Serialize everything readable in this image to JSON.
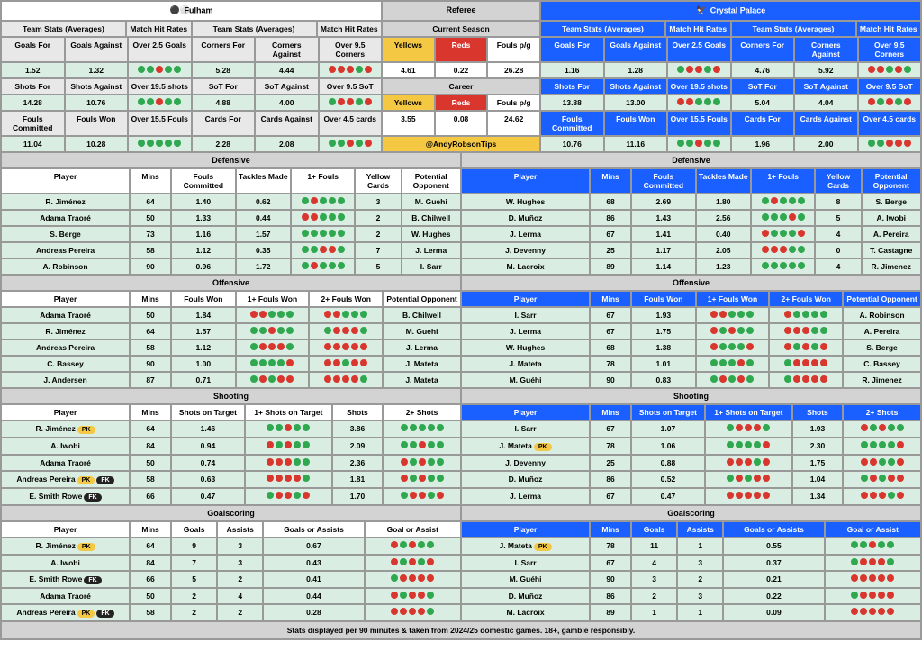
{
  "colors": {
    "home_primary": "#ffffff",
    "away_primary": "#1a5fff",
    "data_bg": "#d9ede2",
    "grey": "#d3d3d3",
    "yellow": "#f4c842",
    "red": "#d9362e",
    "green_dot": "#2fa84f"
  },
  "home_name": "Fulham",
  "away_name": "Crystal Palace",
  "referee_label": "Referee",
  "current_season_label": "Current Season",
  "career_label": "Career",
  "twitter": "@AndyRobsonTips",
  "footer": "Stats displayed per 90 minutes & taken from 2024/25 domestic games. 18+, gamble responsibly.",
  "stat_headers": [
    "Team Stats (Averages)",
    "Match Hit Rates",
    "Team Stats (Averages)",
    "Match Hit Rates"
  ],
  "ref_headers": [
    "Yellows",
    "Reds",
    "Fouls p/g"
  ],
  "home_stats": {
    "r1_labels": [
      "Goals For",
      "Goals Against",
      "Over 2.5 Goals",
      "Corners For",
      "Corners Against",
      "Over 9.5 Corners"
    ],
    "r1_vals": [
      "1.52",
      "1.32",
      "ggrgg",
      "5.28",
      "4.44",
      "rrrgr"
    ],
    "r2_labels": [
      "Shots For",
      "Shots Against",
      "Over 19.5 shots",
      "SoT For",
      "SoT Against",
      "Over 9.5 SoT"
    ],
    "r2_vals": [
      "14.28",
      "10.76",
      "ggrgg",
      "4.88",
      "4.00",
      "grrgr"
    ],
    "r3_labels": [
      "Fouls Committed",
      "Fouls Won",
      "Over 15.5 Fouls",
      "Cards For",
      "Cards Against",
      "Over 4.5 cards"
    ],
    "r3_vals": [
      "11.04",
      "10.28",
      "ggggg",
      "2.28",
      "2.08",
      "ggrgr"
    ]
  },
  "away_stats": {
    "r1_labels": [
      "Goals For",
      "Goals Against",
      "Over 2.5 Goals",
      "Corners For",
      "Corners Against",
      "Over 9.5 Corners"
    ],
    "r1_vals": [
      "1.16",
      "1.28",
      "grrgr",
      "4.76",
      "5.92",
      "rrgrg"
    ],
    "r2_labels": [
      "Shots For",
      "Shots Against",
      "Over 19.5 shots",
      "SoT For",
      "SoT Against",
      "Over 9.5 SoT"
    ],
    "r2_vals": [
      "13.88",
      "13.00",
      "rrggg",
      "5.04",
      "4.04",
      "rgrgr"
    ],
    "r3_labels": [
      "Fouls Committed",
      "Fouls Won",
      "Over 15.5 Fouls",
      "Cards For",
      "Cards Against",
      "Over 4.5 cards"
    ],
    "r3_vals": [
      "10.76",
      "11.16",
      "ggrgg",
      "1.96",
      "2.00",
      "ggrrr"
    ]
  },
  "ref_current": [
    "4.61",
    "0.22",
    "26.28"
  ],
  "ref_career": [
    "3.55",
    "0.08",
    "24.62"
  ],
  "sections": {
    "defensive": {
      "title": "Defensive",
      "cols": [
        "Player",
        "Mins",
        "Fouls Committed",
        "Tackles Made",
        "1+ Fouls",
        "Yellow Cards",
        "Potential Opponent"
      ],
      "widths": [
        "28%",
        "9%",
        "14%",
        "12%",
        "14%",
        "10%",
        "13%"
      ],
      "home": [
        [
          "R. Jiménez",
          "64",
          "1.40",
          "0.62",
          "grggg",
          "3",
          "M. Guehi"
        ],
        [
          "Adama Traoré",
          "50",
          "1.33",
          "0.44",
          "rrggg",
          "2",
          "B. Chilwell"
        ],
        [
          "S. Berge",
          "73",
          "1.16",
          "1.57",
          "ggggg",
          "2",
          "W. Hughes"
        ],
        [
          "Andreas Pereira",
          "58",
          "1.12",
          "0.35",
          "ggrrg",
          "7",
          "J. Lerma"
        ],
        [
          "A. Robinson",
          "90",
          "0.96",
          "1.72",
          "grggg",
          "5",
          "I. Sarr"
        ]
      ],
      "away": [
        [
          "W. Hughes",
          "68",
          "2.69",
          "1.80",
          "grggg",
          "8",
          "S. Berge"
        ],
        [
          "D. Muñoz",
          "86",
          "1.43",
          "2.56",
          "gggrg",
          "5",
          "A. Iwobi"
        ],
        [
          "J. Lerma",
          "67",
          "1.41",
          "0.40",
          "rgggr",
          "4",
          "A. Pereira"
        ],
        [
          "J. Devenny",
          "25",
          "1.17",
          "2.05",
          "rrrgg",
          "0",
          "T. Castagne"
        ],
        [
          "M. Lacroix",
          "89",
          "1.14",
          "1.23",
          "ggggg",
          "4",
          "R. Jimenez"
        ]
      ]
    },
    "offensive": {
      "title": "Offensive",
      "cols": [
        "Player",
        "Mins",
        "Fouls Won",
        "1+ Fouls Won",
        "2+ Fouls Won",
        "Potential Opponent"
      ],
      "widths": [
        "28%",
        "9%",
        "14%",
        "16%",
        "16%",
        "17%"
      ],
      "home": [
        [
          "Adama Traoré",
          "50",
          "1.84",
          "rrggg",
          "rrggg",
          "B. Chilwell"
        ],
        [
          "R. Jiménez",
          "64",
          "1.57",
          "ggrgg",
          "grrrg",
          "M. Guehi"
        ],
        [
          "Andreas Pereira",
          "58",
          "1.12",
          "grrrg",
          "rrrrr",
          "J. Lerma"
        ],
        [
          "C. Bassey",
          "90",
          "1.00",
          "ggggr",
          "rrgrr",
          "J. Mateta"
        ],
        [
          "J. Andersen",
          "87",
          "0.71",
          "grgrr",
          "rrrrg",
          "J. Mateta"
        ]
      ],
      "away": [
        [
          "I. Sarr",
          "67",
          "1.93",
          "rrggg",
          "rgggg",
          "A. Robinson"
        ],
        [
          "J. Lerma",
          "67",
          "1.75",
          "rgrgg",
          "rrrgg",
          "A. Pereira"
        ],
        [
          "W. Hughes",
          "68",
          "1.38",
          "rgggr",
          "rgrgr",
          "S. Berge"
        ],
        [
          "J. Mateta",
          "78",
          "1.01",
          "gggrg",
          "grrrr",
          "C. Bassey"
        ],
        [
          "M. Guéhi",
          "90",
          "0.83",
          "grgrg",
          "grrrr",
          "R. Jimenez"
        ]
      ]
    },
    "shooting": {
      "title": "Shooting",
      "cols": [
        "Player",
        "Mins",
        "Shots on Target",
        "1+ Shots on Target",
        "Shots",
        "2+ Shots"
      ],
      "widths": [
        "28%",
        "9%",
        "16%",
        "19%",
        "11%",
        "17%"
      ],
      "home": [
        [
          "R. Jiménez|PK",
          "64",
          "1.46",
          "ggrgg",
          "3.86",
          "ggggg"
        ],
        [
          "A. Iwobi",
          "84",
          "0.94",
          "rgrgg",
          "2.09",
          "ggrgg"
        ],
        [
          "Adama Traoré",
          "50",
          "0.74",
          "rrrgg",
          "2.36",
          "rgrgg"
        ],
        [
          "Andreas Pereira|PK|FK",
          "58",
          "0.63",
          "rrrrg",
          "1.81",
          "rgrgg"
        ],
        [
          "E. Smith Rowe|FK",
          "66",
          "0.47",
          "grrgr",
          "1.70",
          "grrgr"
        ]
      ],
      "away": [
        [
          "I. Sarr",
          "67",
          "1.07",
          "grrrg",
          "1.93",
          "rgrgg"
        ],
        [
          "J. Mateta|PK",
          "78",
          "1.06",
          "ggggr",
          "2.30",
          "ggggr"
        ],
        [
          "J. Devenny",
          "25",
          "0.88",
          "rrrgr",
          "1.75",
          "rrggr"
        ],
        [
          "D. Muñoz",
          "86",
          "0.52",
          "grgrr",
          "1.04",
          "grgrr"
        ],
        [
          "J. Lerma",
          "67",
          "0.47",
          "rrrrr",
          "1.34",
          "rrrgr"
        ]
      ]
    },
    "goalscoring": {
      "title": "Goalscoring",
      "cols": [
        "Player",
        "Mins",
        "Goals",
        "Assists",
        "Goals or Assists",
        "Goal or Assist"
      ],
      "widths": [
        "28%",
        "9%",
        "10%",
        "10%",
        "22%",
        "21%"
      ],
      "home": [
        [
          "R. Jiménez|PK",
          "64",
          "9",
          "3",
          "0.67",
          "rgrgg"
        ],
        [
          "A. Iwobi",
          "84",
          "7",
          "3",
          "0.43",
          "rgrgr"
        ],
        [
          "E. Smith Rowe|FK",
          "66",
          "5",
          "2",
          "0.41",
          "grrrr"
        ],
        [
          "Adama Traoré",
          "50",
          "2",
          "4",
          "0.44",
          "rgrrg"
        ],
        [
          "Andreas Pereira|PK|FK",
          "58",
          "2",
          "2",
          "0.28",
          "rrrrg"
        ]
      ],
      "away": [
        [
          "J. Mateta|PK",
          "78",
          "11",
          "1",
          "0.55",
          "ggrgg"
        ],
        [
          "I. Sarr",
          "67",
          "4",
          "3",
          "0.37",
          "grrrg"
        ],
        [
          "M. Guéhi",
          "90",
          "3",
          "2",
          "0.21",
          "rrrrr"
        ],
        [
          "D. Muñoz",
          "86",
          "2",
          "3",
          "0.22",
          "grrrr"
        ],
        [
          "M. Lacroix",
          "89",
          "1",
          "1",
          "0.09",
          "rrrrr"
        ]
      ]
    }
  }
}
